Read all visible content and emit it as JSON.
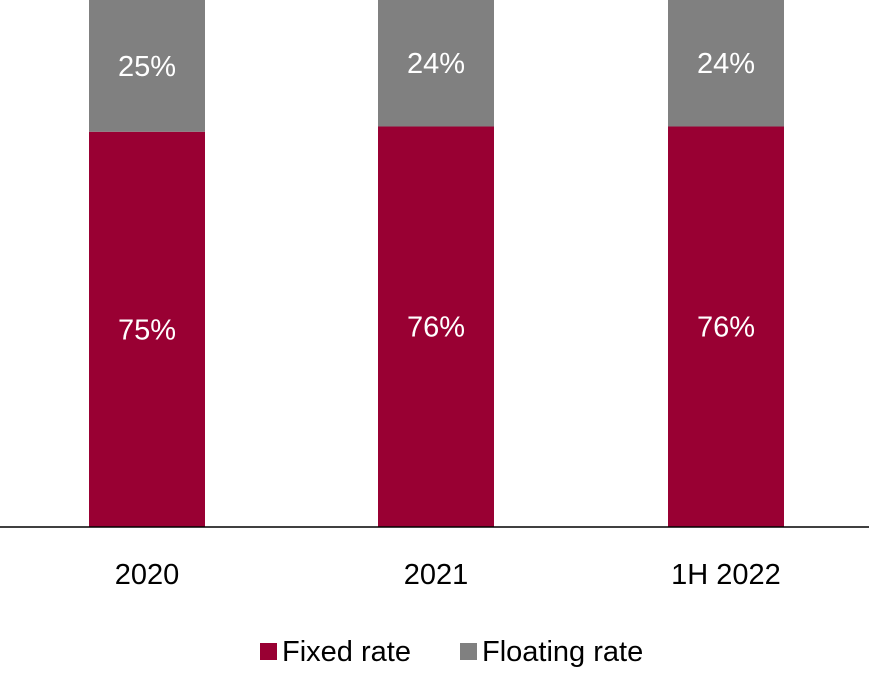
{
  "chart_data": {
    "type": "bar",
    "stacked": true,
    "percent": true,
    "categories": [
      "2020",
      "2021",
      "1H 2022"
    ],
    "series": [
      {
        "name": "Fixed rate",
        "values": [
          75,
          76,
          76
        ],
        "color": "#990033",
        "labels": [
          "75%",
          "76%",
          "76%"
        ]
      },
      {
        "name": "Floating rate",
        "values": [
          25,
          24,
          24
        ],
        "color": "#808080",
        "labels": [
          "25%",
          "24%",
          "24%"
        ]
      }
    ],
    "ylim": [
      0,
      100
    ],
    "grid": false,
    "legend_position": "bottom-center",
    "label_color": "#ffffff",
    "text_color": "#000000",
    "axis_color": "#000000"
  }
}
